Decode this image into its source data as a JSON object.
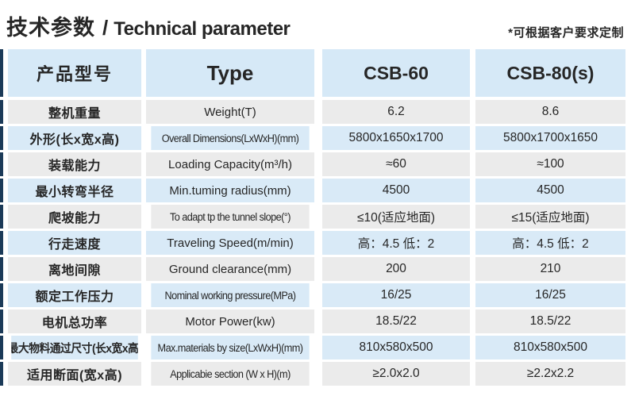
{
  "header": {
    "title_zh": "技术参数",
    "title_sep": "/",
    "title_en": "Technical parameter",
    "note": "*可根据客户要求定制"
  },
  "table": {
    "columns": [
      "产品型号",
      "Type",
      "CSB-60",
      "CSB-80(s)"
    ],
    "rows": [
      {
        "zh": "整机重量",
        "en": "Weight(T)",
        "csb60": "6.2",
        "csb80": "8.6"
      },
      {
        "zh": "外形(长x宽x高)",
        "en": "Overall Dimensions(LxWxH)(mm)",
        "csb60": "5800x1650x1700",
        "csb80": "5800x1700x1650"
      },
      {
        "zh": "装载能力",
        "en": "Loading Capacity(m³/h)",
        "csb60": "≈60",
        "csb80": "≈100"
      },
      {
        "zh": "最小转弯半径",
        "en": "Min.tuming radius(mm)",
        "csb60": "4500",
        "csb80": "4500"
      },
      {
        "zh": "爬坡能力",
        "en": "To adapt tp the tunnel slope(°)",
        "csb60": "≤10(适应地面)",
        "csb80": "≤15(适应地面)"
      },
      {
        "zh": "行走速度",
        "en": "Traveling Speed(m/min)",
        "csb60": "高：4.5 低：2",
        "csb80": "高：4.5 低：2"
      },
      {
        "zh": "离地间隙",
        "en": "Ground clearance(mm)",
        "csb60": "200",
        "csb80": "210"
      },
      {
        "zh": "额定工作压力",
        "en": "Nominal working pressure(MPa)",
        "csb60": "16/25",
        "csb80": "16/25"
      },
      {
        "zh": "电机总功率",
        "en": "Motor Power(kw)",
        "csb60": "18.5/22",
        "csb80": "18.5/22"
      },
      {
        "zh": "最大物料通过尺寸(长x宽x高)",
        "en": "Max.materials by size(LxWxH)(mm)",
        "csb60": "810x580x500",
        "csb80": "810x580x500"
      },
      {
        "zh": "适用断面(宽x高)",
        "en": "Applicabie section (W x H)(m)",
        "csb60": "≥2.0x2.0",
        "csb80": "≥2.2x2.2"
      }
    ]
  },
  "colors": {
    "header_bg": "#d6e9f7",
    "row_blue": "#d9eaf7",
    "row_gray": "#ebebeb",
    "accent_dark": "#1b3a58",
    "text": "#262626"
  }
}
